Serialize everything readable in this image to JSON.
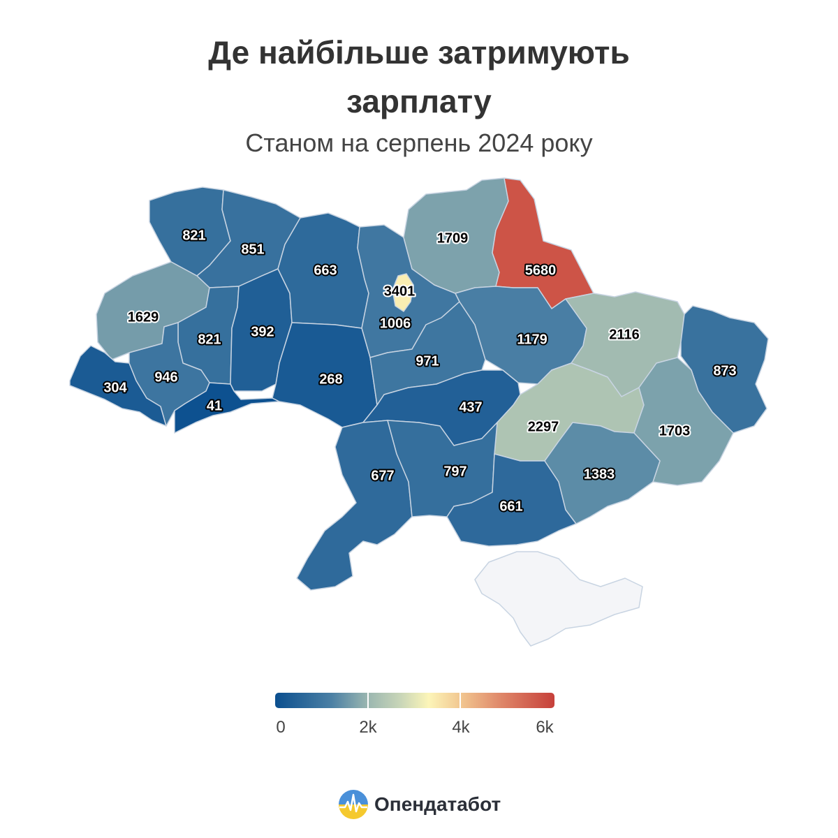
{
  "title_line1": "Де найбільше затримують",
  "title_line2": "зарплату",
  "subtitle": "Станом на серпень 2024 року",
  "brand": {
    "name": "Опендатабот",
    "logo_icon": "opendatabot-logo-icon"
  },
  "legend": {
    "ticks": [
      "0",
      "2k",
      "4k",
      "6k"
    ],
    "colors": [
      "#0b4f8f",
      "#4a7fa4",
      "#9ab6b0",
      "#c9d6b8",
      "#fcf5b8",
      "#f1c48e",
      "#e08a6b",
      "#c6403a"
    ]
  },
  "regions": [
    {
      "id": "volyn",
      "value": "821",
      "num": 821
    },
    {
      "id": "rivne",
      "value": "851",
      "num": 851
    },
    {
      "id": "lviv",
      "value": "1629",
      "num": 1629
    },
    {
      "id": "ternopil",
      "value": "821",
      "num": 821
    },
    {
      "id": "khmelnytskyi",
      "value": "392",
      "num": 392
    },
    {
      "id": "zhytomyr",
      "value": "663",
      "num": 663
    },
    {
      "id": "kyiv-oblast",
      "value": "1006",
      "num": 1006
    },
    {
      "id": "kyiv-city",
      "value": "3401",
      "num": 3401
    },
    {
      "id": "chernihiv",
      "value": "1709",
      "num": 1709
    },
    {
      "id": "sumy",
      "value": "5680",
      "num": 5680
    },
    {
      "id": "zakarpattia",
      "value": "304",
      "num": 304
    },
    {
      "id": "ivano-frankivsk",
      "value": "946",
      "num": 946
    },
    {
      "id": "chernivtsi",
      "value": "41",
      "num": 41
    },
    {
      "id": "vinnytsia",
      "value": "268",
      "num": 268
    },
    {
      "id": "cherkasy",
      "value": "971",
      "num": 971
    },
    {
      "id": "poltava",
      "value": "1179",
      "num": 1179
    },
    {
      "id": "kharkiv",
      "value": "2116",
      "num": 2116
    },
    {
      "id": "luhansk",
      "value": "873",
      "num": 873
    },
    {
      "id": "kirovohrad",
      "value": "437",
      "num": 437
    },
    {
      "id": "dnipropetrovsk",
      "value": "2297",
      "num": 2297
    },
    {
      "id": "donetsk",
      "value": "1703",
      "num": 1703
    },
    {
      "id": "odesa",
      "value": "677",
      "num": 677
    },
    {
      "id": "mykolaiv",
      "value": "797",
      "num": 797
    },
    {
      "id": "kherson",
      "value": "661",
      "num": 661
    },
    {
      "id": "zaporizhzhia",
      "value": "1383",
      "num": 1383
    },
    {
      "id": "crimea",
      "value": "",
      "num": null
    }
  ]
}
